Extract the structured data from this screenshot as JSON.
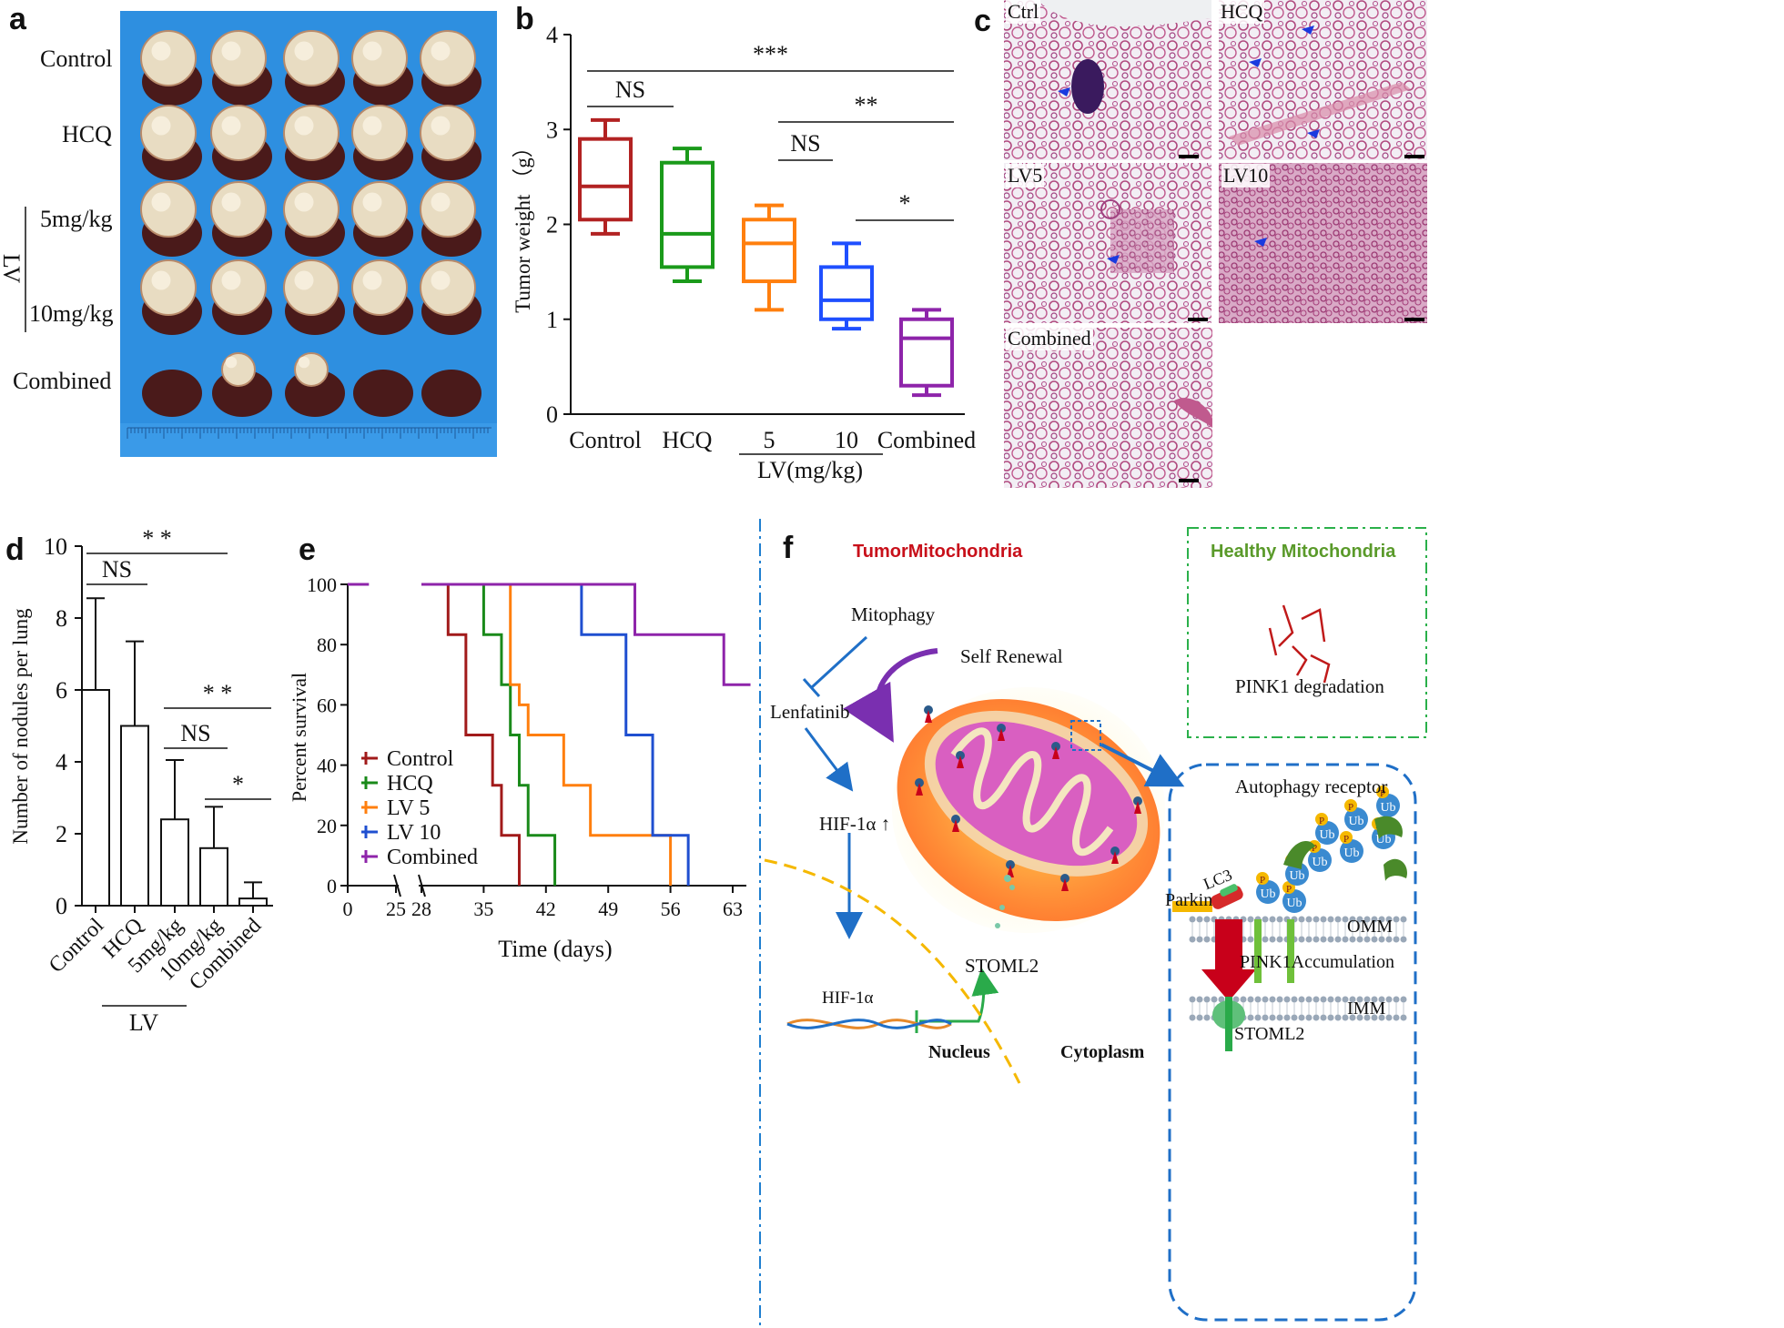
{
  "panels": {
    "a": {
      "letter": "a",
      "rows": [
        "Control",
        "HCQ",
        "5mg/kg",
        "10mg/kg",
        "Combined"
      ],
      "lv": "LV"
    },
    "b": {
      "letter": "b"
    },
    "c": {
      "letter": "c",
      "labels": [
        "Ctrl",
        "HCQ",
        "LV5",
        "LV10",
        "Combined"
      ]
    },
    "d": {
      "letter": "d"
    },
    "e": {
      "letter": "e"
    },
    "f": {
      "letter": "f",
      "tumor_title": "TumorMitochondria",
      "healthy_title": "Healthy Mitochondria",
      "pink_degradation": "PINK1 degradation",
      "mitophagy": "Mitophagy",
      "self_renewal": "Self Renewal",
      "lenfatinib": "Lenfatinib",
      "hif_up": "HIF-1α ↑",
      "hif": "HIF-1α",
      "stoml2": "STOML2",
      "nucleus": "Nucleus",
      "cytoplasm": "Cytoplasm",
      "autophagy_receptor": "Autophagy receptor",
      "lc3": "LC3",
      "parkin": "Parkin",
      "omm": "OMM",
      "imm": "IMM",
      "pink_accum": "PINK1Accumulation",
      "stoml2_inner": "STOML2",
      "p": "P",
      "ub": "Ub"
    }
  },
  "chart_data": [
    {
      "id": "b",
      "type": "box",
      "ylabel": "Tumor weight （g）",
      "ylim": [
        0,
        4
      ],
      "yticks": [
        "0",
        "1",
        "2",
        "3",
        "4"
      ],
      "categories": [
        "Control",
        "HCQ",
        "5",
        "10",
        "Combined"
      ],
      "group_label": "LV(mg/kg)",
      "colors": [
        "#b22222",
        "#1a9a1a",
        "#ff7f0e",
        "#1f4fff",
        "#8e24aa"
      ],
      "boxes": [
        {
          "min": 1.9,
          "q1": 2.05,
          "median": 2.4,
          "q3": 2.9,
          "max": 3.1
        },
        {
          "min": 1.4,
          "q1": 1.55,
          "median": 1.9,
          "q3": 2.65,
          "max": 2.8
        },
        {
          "min": 1.1,
          "q1": 1.4,
          "median": 1.8,
          "q3": 2.05,
          "max": 2.2
        },
        {
          "min": 0.9,
          "q1": 1.0,
          "median": 1.2,
          "q3": 1.55,
          "max": 1.8
        },
        {
          "min": 0.2,
          "q1": 0.3,
          "median": 0.8,
          "q3": 1.0,
          "max": 1.1
        }
      ],
      "significance": [
        {
          "from": 0,
          "to": 4,
          "label": "***"
        },
        {
          "from": 0,
          "to": 1,
          "label": "NS"
        },
        {
          "from": 2,
          "to": 4,
          "label": "**"
        },
        {
          "from": 2,
          "to": 3,
          "label": "NS"
        },
        {
          "from": 3,
          "to": 4,
          "label": "*"
        }
      ]
    },
    {
      "id": "d",
      "type": "bar",
      "ylabel": "Number of nodules per lung",
      "ylim": [
        0,
        10
      ],
      "yticks": [
        "0",
        "2",
        "4",
        "6",
        "8",
        "10"
      ],
      "categories": [
        "Control",
        "HCQ",
        "5mg/kg",
        "10mg/kg",
        "Combined"
      ],
      "group_label": "LV",
      "values": [
        6.0,
        5.0,
        2.4,
        1.6,
        0.2
      ],
      "errors": [
        2.55,
        2.35,
        1.65,
        1.15,
        0.45
      ],
      "significance": [
        {
          "from": 0,
          "to": 3,
          "label": "* *"
        },
        {
          "from": 0,
          "to": 1,
          "label": "NS"
        },
        {
          "from": 2,
          "to": 4,
          "label": "* *"
        },
        {
          "from": 2,
          "to": 3,
          "label": "NS"
        },
        {
          "from": 3,
          "to": 4,
          "label": "*"
        }
      ]
    },
    {
      "id": "e",
      "type": "line",
      "xlabel": "Time (days)",
      "ylabel": "Percent survival",
      "ylim": [
        0,
        100
      ],
      "yticks": [
        "0",
        "20",
        "40",
        "60",
        "80",
        "100"
      ],
      "xticks": [
        "0",
        "25",
        "28",
        "35",
        "42",
        "49",
        "56",
        "63"
      ],
      "series": [
        {
          "name": "Control",
          "color": "#a11a1a",
          "points": [
            [
              28,
              100
            ],
            [
              31,
              100
            ],
            [
              31,
              83.3
            ],
            [
              33,
              83.3
            ],
            [
              33,
              50
            ],
            [
              36,
              50
            ],
            [
              36,
              33.3
            ],
            [
              37,
              33.3
            ],
            [
              37,
              16.7
            ],
            [
              39,
              16.7
            ],
            [
              39,
              0
            ]
          ]
        },
        {
          "name": "HCQ",
          "color": "#1a8a1a",
          "points": [
            [
              28,
              100
            ],
            [
              35,
              100
            ],
            [
              35,
              83.3
            ],
            [
              37,
              83.3
            ],
            [
              37,
              66.7
            ],
            [
              38,
              66.7
            ],
            [
              38,
              50
            ],
            [
              39,
              50
            ],
            [
              39,
              33.3
            ],
            [
              40,
              33.3
            ],
            [
              40,
              16.7
            ],
            [
              43,
              16.7
            ],
            [
              43,
              0
            ]
          ]
        },
        {
          "name": "LV 5",
          "color": "#ff7f0e",
          "points": [
            [
              28,
              100
            ],
            [
              38,
              100
            ],
            [
              38,
              66.7
            ],
            [
              39,
              66.7
            ],
            [
              39,
              60
            ],
            [
              40,
              60
            ],
            [
              40,
              50
            ],
            [
              44,
              50
            ],
            [
              44,
              33.3
            ],
            [
              47,
              33.3
            ],
            [
              47,
              16.7
            ],
            [
              56,
              16.7
            ],
            [
              56,
              0
            ]
          ]
        },
        {
          "name": "LV 10",
          "color": "#1f4fd0",
          "points": [
            [
              28,
              100
            ],
            [
              46,
              100
            ],
            [
              46,
              83.3
            ],
            [
              51,
              83.3
            ],
            [
              51,
              50
            ],
            [
              54,
              50
            ],
            [
              54,
              16.7
            ],
            [
              58,
              16.7
            ],
            [
              58,
              0
            ]
          ]
        },
        {
          "name": "Combined",
          "color": "#8e24aa",
          "points": [
            [
              0,
              100
            ],
            [
              11,
              100
            ],
            [
              28,
              100
            ],
            [
              52,
              100
            ],
            [
              52,
              83.3
            ],
            [
              62,
              83.3
            ],
            [
              62,
              66.7
            ],
            [
              65,
              66.7
            ]
          ]
        }
      ]
    }
  ]
}
